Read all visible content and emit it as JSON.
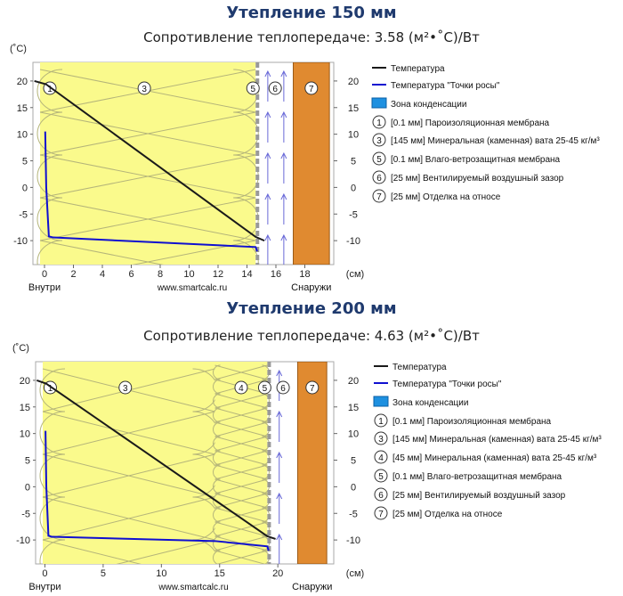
{
  "chart_data": [
    {
      "type": "line",
      "title": "Утепление 150 мм",
      "subtitle": "Сопротивление теплопередаче: 3.58 (м²•˚С)/Вт",
      "y_unit": "(˚С)",
      "x_unit": "(см)",
      "xlim": [
        -0.8,
        20
      ],
      "ylim": [
        -14.5,
        23.5
      ],
      "x_ticks": [
        0,
        2,
        4,
        6,
        8,
        10,
        12,
        14,
        16,
        18
      ],
      "y_ticks": [
        20,
        15,
        10,
        5,
        0,
        -5,
        -10
      ],
      "x_annotations": {
        "inside": "Внутри",
        "site": "www.smartcalc.ru",
        "outside": "Снаружи"
      },
      "layers": [
        {
          "marker": "1",
          "kind": "membrane-vapor",
          "x0": 0,
          "x1": 0.1
        },
        {
          "marker": "3",
          "kind": "wool-cross",
          "x0": 0.1,
          "x1": 14.6
        },
        {
          "marker": "5",
          "kind": "membrane-wind",
          "x0": 14.6,
          "x1": 14.7
        },
        {
          "marker": "6",
          "kind": "air-gap",
          "x0": 14.7,
          "x1": 17.2
        },
        {
          "marker": "7",
          "kind": "cladding",
          "x0": 17.2,
          "x1": 19.7
        }
      ],
      "series": [
        {
          "name": "Температура",
          "color": "#1a1a1a",
          "x": [
            -0.7,
            0.1,
            14.6,
            15.2
          ],
          "y": [
            20,
            19.4,
            -9.3,
            -10
          ]
        },
        {
          "name": "Температура \"Точки росы\"",
          "color": "#1010d0",
          "x": [
            0.05,
            0.12,
            0.3,
            0.6,
            14.6,
            14.7
          ],
          "y": [
            10.5,
            0,
            -9.2,
            -9.4,
            -11.2,
            -12
          ]
        }
      ],
      "legend": [
        {
          "kind": "line",
          "color": "#1a1a1a",
          "label": "Температура"
        },
        {
          "kind": "line",
          "color": "#1010d0",
          "label": "Температура \"Точки росы\""
        },
        {
          "kind": "box",
          "color": "#1e90e0",
          "label": "Зона конденсации"
        },
        {
          "kind": "circle",
          "marker": "1",
          "label": "[0.1 мм] Пароизоляционная мембрана"
        },
        {
          "kind": "circle",
          "marker": "3",
          "label": "[145 мм] Минеральная (каменная) вата 25-45 кг/м³"
        },
        {
          "kind": "circle",
          "marker": "5",
          "label": "[0.1 мм] Влаго-ветрозащитная мембрана"
        },
        {
          "kind": "circle",
          "marker": "6",
          "label": "[25 мм] Вентилируемый воздушный зазор"
        },
        {
          "kind": "circle",
          "marker": "7",
          "label": "[25 мм] Отделка на относе"
        }
      ]
    },
    {
      "type": "line",
      "title": "Утепление 200 мм",
      "subtitle": "Сопротивление теплопередаче: 4.63 (м²•˚С)/Вт",
      "y_unit": "(˚С)",
      "x_unit": "(см)",
      "xlim": [
        -0.8,
        24.8
      ],
      "ylim": [
        -14.5,
        23.5
      ],
      "x_ticks": [
        0,
        5,
        10,
        15,
        20
      ],
      "y_ticks": [
        20,
        15,
        10,
        5,
        0,
        -5,
        -10
      ],
      "x_annotations": {
        "inside": "Внутри",
        "site": "www.smartcalc.ru",
        "outside": "Снаружи"
      },
      "layers": [
        {
          "marker": "1",
          "kind": "membrane-vapor",
          "x0": 0,
          "x1": 0.1
        },
        {
          "marker": "3",
          "kind": "wool-cross",
          "x0": 0.1,
          "x1": 14.6
        },
        {
          "marker": "4",
          "kind": "wool-dense",
          "x0": 14.6,
          "x1": 19.1
        },
        {
          "marker": "5",
          "kind": "membrane-wind",
          "x0": 19.1,
          "x1": 19.2
        },
        {
          "marker": "6",
          "kind": "air-gap",
          "x0": 19.2,
          "x1": 21.7
        },
        {
          "marker": "7",
          "kind": "cladding",
          "x0": 21.7,
          "x1": 24.2
        }
      ],
      "series": [
        {
          "name": "Температура",
          "color": "#1a1a1a",
          "x": [
            -0.7,
            0.1,
            19.1,
            19.8
          ],
          "y": [
            20,
            19.4,
            -9.3,
            -9.8
          ]
        },
        {
          "name": "Температура \"Точки росы\"",
          "color": "#1010d0",
          "x": [
            0.05,
            0.12,
            0.3,
            0.6,
            14.6,
            19.1,
            19.2
          ],
          "y": [
            10.5,
            0,
            -9.2,
            -9.4,
            -10.2,
            -11.2,
            -12
          ]
        }
      ],
      "legend": [
        {
          "kind": "line",
          "color": "#1a1a1a",
          "label": "Температура"
        },
        {
          "kind": "line",
          "color": "#1010d0",
          "label": "Температура \"Точки росы\""
        },
        {
          "kind": "box",
          "color": "#1e90e0",
          "label": "Зона конденсации"
        },
        {
          "kind": "circle",
          "marker": "1",
          "label": "[0.1 мм] Пароизоляционная мембрана"
        },
        {
          "kind": "circle",
          "marker": "3",
          "label": "[145 мм] Минеральная (каменная) вата 25-45 кг/м³"
        },
        {
          "kind": "circle",
          "marker": "4",
          "label": "[45 мм] Минеральная (каменная) вата 25-45 кг/м³"
        },
        {
          "kind": "circle",
          "marker": "5",
          "label": "[0.1 мм] Влаго-ветрозащитная мембрана"
        },
        {
          "kind": "circle",
          "marker": "6",
          "label": "[25 мм] Вентилируемый воздушный зазор"
        },
        {
          "kind": "circle",
          "marker": "7",
          "label": "[25 мм] Отделка на относе"
        }
      ]
    }
  ],
  "colors": {
    "insulation_fill": "#fafa8c",
    "insulation_lines": "#b5b57a",
    "cladding": "#e08a30",
    "membrane": "#999999",
    "air_arrow": "#6a6ad8"
  }
}
